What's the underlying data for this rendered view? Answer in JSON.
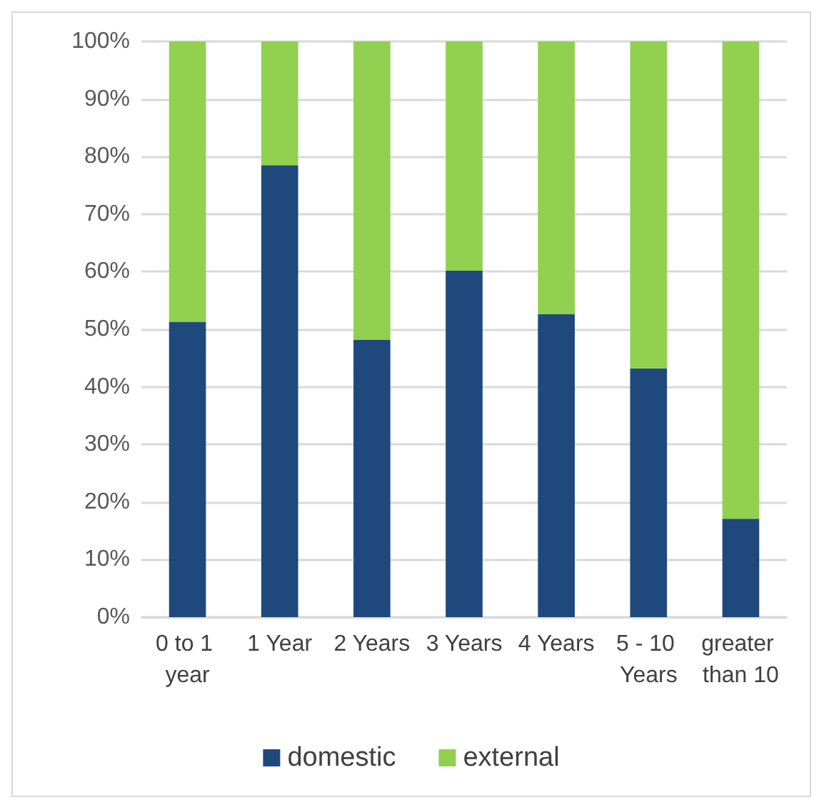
{
  "chart_data": {
    "type": "bar",
    "stacked": true,
    "categories": [
      "0 to 1 year",
      "1 Year",
      "2 Years",
      "3 Years",
      "4 Years",
      "5 - 10 Years",
      "greater than 10"
    ],
    "series": [
      {
        "name": "domestic",
        "color": "#1f497d",
        "values": [
          51.3,
          78.5,
          48.2,
          60.2,
          52.6,
          43.2,
          17.1
        ]
      },
      {
        "name": "external",
        "color": "#92d050",
        "values": [
          48.7,
          21.5,
          51.8,
          39.8,
          47.4,
          56.8,
          82.9
        ]
      }
    ],
    "ylim": [
      0,
      100
    ],
    "yticks": [
      {
        "value": 0,
        "label": "0%"
      },
      {
        "value": 10,
        "label": "10%"
      },
      {
        "value": 20,
        "label": "20%"
      },
      {
        "value": 30,
        "label": "30%"
      },
      {
        "value": 40,
        "label": "40%"
      },
      {
        "value": 50,
        "label": "50%"
      },
      {
        "value": 60,
        "label": "60%"
      },
      {
        "value": 70,
        "label": "70%"
      },
      {
        "value": 80,
        "label": "80%"
      },
      {
        "value": 90,
        "label": "90%"
      },
      {
        "value": 100,
        "label": "100%"
      }
    ],
    "grid": "y",
    "legend": "bottom"
  }
}
